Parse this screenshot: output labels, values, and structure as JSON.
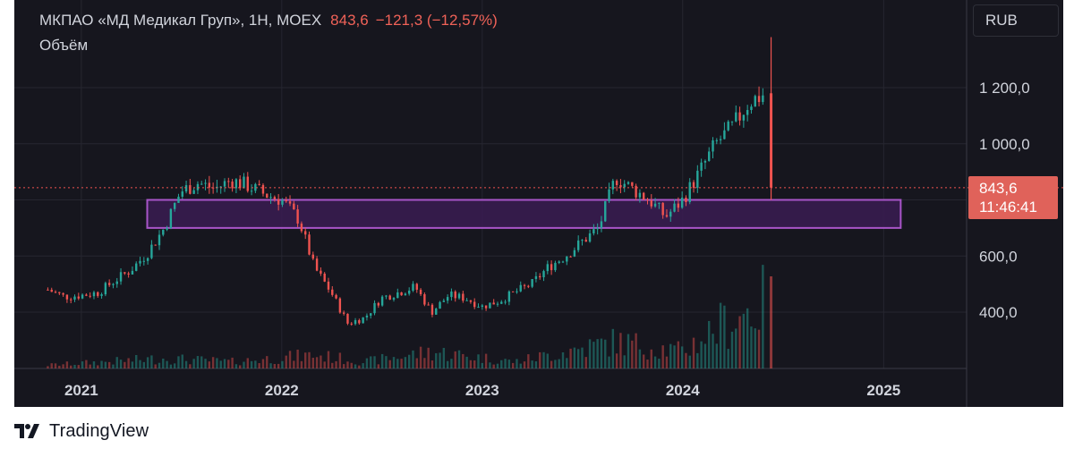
{
  "header": {
    "symbol": "МКПАО «МД Медикал Груп», 1Н, MOEX",
    "last_price": "843,6",
    "change": "−121,3 (−12,57%)"
  },
  "volume_label": "Объём",
  "currency": "RUB",
  "price_tag": {
    "price": "843,6",
    "countdown": "11:46:41"
  },
  "footer": {
    "brand": "TradingView",
    "logo_icon": "tradingview-logo-icon"
  },
  "colors": {
    "background": "#16161e",
    "up": "#26a69a",
    "down": "#ef5350",
    "zone_fill": "#3a1c52",
    "zone_border": "#a855c8",
    "text": "#d1d4dc",
    "price_line": "#ef5350"
  },
  "chart_data": {
    "type": "candlestick",
    "title": "МКПАО «МД Медикал Груп», 1Н, MOEX",
    "timeframe": "1Н",
    "currency": "RUB",
    "x_tick_labels": [
      "2021",
      "2022",
      "2023",
      "2024",
      "2025"
    ],
    "y_tick_labels": [
      "400,0",
      "600,0",
      "1 000,0",
      "1 200,0"
    ],
    "y_ticks": [
      400,
      600,
      1000,
      1200
    ],
    "ylim": [
      200,
      1400
    ],
    "xlim": [
      "2020-09-01",
      "2025-06-01"
    ],
    "last_price": 843.6,
    "grid": true,
    "shaded_zone": {
      "x_start": "2021-05-01",
      "x_end": "2025-02-01",
      "y_low": 700,
      "y_high": 800
    },
    "price_path": [
      [
        "2020-11-01",
        480
      ],
      [
        "2020-12-01",
        455
      ],
      [
        "2021-01-01",
        460
      ],
      [
        "2021-02-01",
        470
      ],
      [
        "2021-03-01",
        510
      ],
      [
        "2021-04-01",
        550
      ],
      [
        "2021-05-01",
        610
      ],
      [
        "2021-06-01",
        700
      ],
      [
        "2021-07-01",
        830
      ],
      [
        "2021-08-01",
        860
      ],
      [
        "2021-09-01",
        840
      ],
      [
        "2021-10-01",
        870
      ],
      [
        "2021-11-01",
        850
      ],
      [
        "2021-12-01",
        820
      ],
      [
        "2022-01-01",
        800
      ],
      [
        "2022-02-01",
        730
      ],
      [
        "2022-03-01",
        560
      ],
      [
        "2022-04-01",
        470
      ],
      [
        "2022-05-01",
        360
      ],
      [
        "2022-06-01",
        380
      ],
      [
        "2022-07-01",
        450
      ],
      [
        "2022-08-01",
        470
      ],
      [
        "2022-09-01",
        490
      ],
      [
        "2022-10-01",
        400
      ],
      [
        "2022-11-01",
        460
      ],
      [
        "2022-12-01",
        450
      ],
      [
        "2023-01-01",
        420
      ],
      [
        "2023-02-01",
        440
      ],
      [
        "2023-03-01",
        470
      ],
      [
        "2023-04-01",
        500
      ],
      [
        "2023-05-01",
        560
      ],
      [
        "2023-06-01",
        600
      ],
      [
        "2023-07-01",
        650
      ],
      [
        "2023-08-01",
        700
      ],
      [
        "2023-09-01",
        880
      ],
      [
        "2023-10-01",
        840
      ],
      [
        "2023-11-01",
        800
      ],
      [
        "2023-12-01",
        740
      ],
      [
        "2024-01-01",
        800
      ],
      [
        "2024-02-01",
        900
      ],
      [
        "2024-03-01",
        1000
      ],
      [
        "2024-04-01",
        1060
      ],
      [
        "2024-05-01",
        1150
      ],
      [
        "2024-06-01",
        1180
      ],
      [
        "2024-06-10",
        843.6
      ]
    ],
    "last_candle": {
      "open": 1180,
      "high": 1380,
      "low": 800,
      "close": 843.6
    },
    "volume_scale_max": 100,
    "volume_path": [
      [
        "2020-11-01",
        5
      ],
      [
        "2021-06-01",
        15
      ],
      [
        "2021-10-01",
        10
      ],
      [
        "2022-03-01",
        20
      ],
      [
        "2022-06-01",
        10
      ],
      [
        "2022-10-01",
        25
      ],
      [
        "2023-03-01",
        10
      ],
      [
        "2023-09-01",
        40
      ],
      [
        "2024-01-01",
        25
      ],
      [
        "2024-03-01",
        60
      ],
      [
        "2024-06-01",
        100
      ]
    ]
  }
}
